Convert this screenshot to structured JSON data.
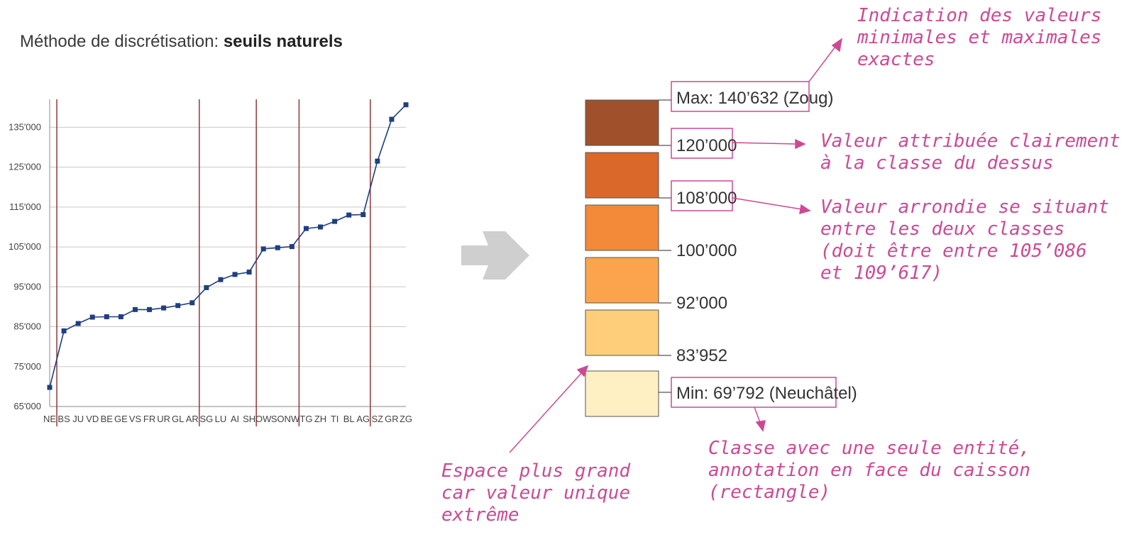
{
  "title": {
    "prefix": "Méthode de discrétisation: ",
    "method": "seuils naturels"
  },
  "chart_data": {
    "type": "line",
    "categories": [
      "NE",
      "BS",
      "JU",
      "VD",
      "BE",
      "GE",
      "VS",
      "FR",
      "UR",
      "GL",
      "AR",
      "SG",
      "LU",
      "AI",
      "SH",
      "OW",
      "SO",
      "NW",
      "TG",
      "ZH",
      "TI",
      "BL",
      "AG",
      "SZ",
      "GR",
      "ZG"
    ],
    "values": [
      69792,
      83952,
      85800,
      87400,
      87500,
      87500,
      89300,
      89300,
      89700,
      90300,
      91000,
      94800,
      96800,
      98100,
      98700,
      104500,
      104800,
      105086,
      109617,
      110000,
      111400,
      113000,
      113100,
      126500,
      137000,
      140632
    ],
    "yticks": [
      "65'000",
      "75'000",
      "85'000",
      "95'000",
      "105'000",
      "115'000",
      "125'000",
      "135'000"
    ],
    "ylim": [
      65000,
      142000
    ],
    "breaks_after": [
      "NE",
      "AR",
      "SH",
      "NW",
      "AG"
    ],
    "grid": true,
    "line_color": "#1f3f7f",
    "break_color": "#8b2a2a"
  },
  "arrow_color": "#cfcfcf",
  "legend": {
    "classes": [
      {
        "color": "#a0502a"
      },
      {
        "color": "#d9682a"
      },
      {
        "color": "#f28a3a"
      },
      {
        "color": "#fca44d"
      },
      {
        "color": "#fece7a"
      },
      {
        "color": "#fff0c4"
      }
    ],
    "max_label": "Max: 140’632 (Zoug)",
    "thresholds": [
      "120’000",
      "108’000",
      "100’000",
      "92’000",
      "83’952"
    ],
    "min_label": "Min: 69’792 (Neuchâtel)"
  },
  "annotations": {
    "max_min": [
      "Indication des valeurs",
      "minimales et maximales",
      "exactes"
    ],
    "upper_class": [
      "Valeur attribuée clairement",
      "à la classe du dessus"
    ],
    "rounded": [
      "Valeur arrondie se situant",
      "entre les deux classes",
      "(doit être entre 105’086",
      "et 109’617)"
    ],
    "gap": [
      "Espace plus grand",
      "car valeur unique",
      "extrême"
    ],
    "single": [
      "Classe avec une seule entité,",
      "annotation en face du caisson",
      "(rectangle)"
    ],
    "color": "#cc4a93"
  }
}
